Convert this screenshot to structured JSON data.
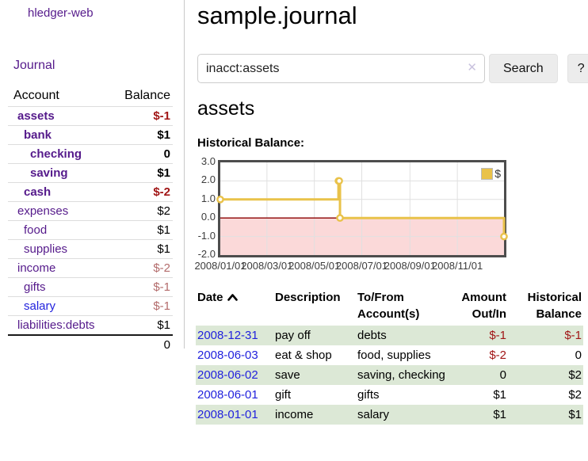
{
  "sidebar": {
    "brand": "hledger-web",
    "journal_label": "Journal",
    "headers": {
      "account": "Account",
      "balance": "Balance"
    },
    "accounts": [
      {
        "name": "assets",
        "depth": 1,
        "bold": true,
        "balance": "$-1",
        "balance_style": "neg",
        "link_color": "purple"
      },
      {
        "name": "bank",
        "depth": 2,
        "bold": true,
        "balance": "$1",
        "balance_style": "pos",
        "link_color": "purple"
      },
      {
        "name": "checking",
        "depth": 3,
        "bold": true,
        "balance": "0",
        "balance_style": "pos",
        "link_color": "purple"
      },
      {
        "name": "saving",
        "depth": 3,
        "bold": true,
        "balance": "$1",
        "balance_style": "pos",
        "link_color": "purple"
      },
      {
        "name": "cash",
        "depth": 2,
        "bold": true,
        "balance": "$-2",
        "balance_style": "neg",
        "link_color": "purple"
      },
      {
        "name": "expenses",
        "depth": 1,
        "bold": false,
        "balance": "$2",
        "balance_style": "pos",
        "link_color": "purple"
      },
      {
        "name": "food",
        "depth": 2,
        "bold": false,
        "balance": "$1",
        "balance_style": "pos",
        "link_color": "purple"
      },
      {
        "name": "supplies",
        "depth": 2,
        "bold": false,
        "balance": "$1",
        "balance_style": "pos",
        "link_color": "purple"
      },
      {
        "name": "income",
        "depth": 1,
        "bold": false,
        "balance": "$-2",
        "balance_style": "neg-muted",
        "link_color": "purple"
      },
      {
        "name": "gifts",
        "depth": 2,
        "bold": false,
        "balance": "$-1",
        "balance_style": "neg-muted",
        "link_color": "purple"
      },
      {
        "name": "salary",
        "depth": 2,
        "bold": false,
        "balance": "$-1",
        "balance_style": "neg-muted",
        "link_color": "blue"
      },
      {
        "name": "liabilities:debts",
        "depth": 1,
        "bold": false,
        "balance": "$1",
        "balance_style": "pos",
        "link_color": "purple"
      }
    ],
    "total": "0"
  },
  "header": {
    "title": "sample.journal"
  },
  "search": {
    "value": "inacct:assets",
    "clear_icon": "✕",
    "button_label": "Search",
    "help_label": "?"
  },
  "main": {
    "account_title": "assets",
    "chart_label": "Historical Balance:"
  },
  "chart_data": {
    "type": "line",
    "title": "Historical Balance",
    "step": true,
    "series": [
      {
        "name": "$",
        "color": "#e9c24a",
        "points": [
          {
            "x": "2008-01-01",
            "day": 0,
            "y": 1
          },
          {
            "x": "2008-06-01",
            "day": 152,
            "y": 2
          },
          {
            "x": "2008-06-02",
            "day": 153,
            "y": 2
          },
          {
            "x": "2008-06-03",
            "day": 154,
            "y": 0
          },
          {
            "x": "2008-12-31",
            "day": 365,
            "y": -1
          }
        ]
      }
    ],
    "x_ticks": [
      {
        "label": "2008/01/01",
        "day": 0
      },
      {
        "label": "2008/03/01",
        "day": 60
      },
      {
        "label": "2008/05/01",
        "day": 121
      },
      {
        "label": "2008/07/01",
        "day": 182
      },
      {
        "label": "2008/09/01",
        "day": 244
      },
      {
        "label": "2008/11/01",
        "day": 305
      }
    ],
    "y_ticks": [
      3.0,
      2.0,
      1.0,
      0.0,
      -1.0,
      -2.0
    ],
    "ylim": [
      -2,
      3
    ],
    "x_range_days": [
      0,
      365
    ],
    "grid": true,
    "legend_position": "top-right",
    "legend": [
      {
        "label": "$",
        "color": "#e9c24a"
      }
    ],
    "zero_line_color": "#8b0000",
    "negative_region_fill": "#fbd9d9",
    "grid_color": "#e0e0e0"
  },
  "register": {
    "headers": {
      "date": "Date",
      "description": "Description",
      "tofrom": "To/From Account(s)",
      "amount": "Amount Out/In",
      "balance": "Historical Balance"
    },
    "sort_icon": "chevron-up",
    "rows": [
      {
        "date": "2008-12-31",
        "description": "pay off",
        "accounts": "debts",
        "amount": "$-1",
        "amount_style": "neg",
        "balance": "$-1",
        "balance_style": "neg"
      },
      {
        "date": "2008-06-03",
        "description": "eat & shop",
        "accounts": "food, supplies",
        "amount": "$-2",
        "amount_style": "neg",
        "balance": "0",
        "balance_style": "pos"
      },
      {
        "date": "2008-06-02",
        "description": "save",
        "accounts": "saving, checking",
        "amount": "0",
        "amount_style": "pos",
        "balance": "$2",
        "balance_style": "pos"
      },
      {
        "date": "2008-06-01",
        "description": "gift",
        "accounts": "gifts",
        "amount": "$1",
        "amount_style": "pos",
        "balance": "$2",
        "balance_style": "pos"
      },
      {
        "date": "2008-01-01",
        "description": "income",
        "accounts": "salary",
        "amount": "$1",
        "amount_style": "pos",
        "balance": "$1",
        "balance_style": "pos"
      }
    ]
  },
  "colors": {
    "link_purple": "#551a8b",
    "link_blue": "#2222dd",
    "negative_red": "#a11616",
    "negative_muted": "#b36b6b",
    "row_stripe_green": "#dce8d6",
    "chart_line_gold": "#e9c24a",
    "chart_negative_fill": "#fbd9d9",
    "chart_zero_line": "#8b0000"
  }
}
